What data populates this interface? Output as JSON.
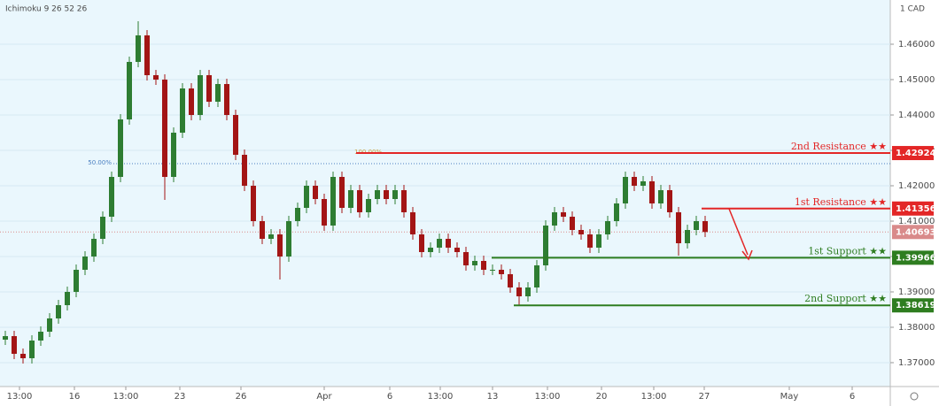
{
  "chart_data": {
    "type": "candlestick",
    "indicator": "Ichimoku 9 26 52 26",
    "currency": "1 CAD",
    "background": "#eaf7fd",
    "up_color": "#2e7d32",
    "down_color": "#a31515",
    "ylim": [
      1.36325,
      1.4725
    ],
    "yticks": [
      {
        "value": 1.37,
        "label": "1.37000"
      },
      {
        "value": 1.38,
        "label": "1.38000"
      },
      {
        "value": 1.39,
        "label": "1.39000"
      },
      {
        "value": 1.4,
        "label": "1.40000"
      },
      {
        "value": 1.41,
        "label": "1.41000"
      },
      {
        "value": 1.42,
        "label": "1.42000"
      },
      {
        "value": 1.43,
        "label": "1.43000"
      },
      {
        "value": 1.44,
        "label": "1.44000"
      },
      {
        "value": 1.45,
        "label": "1.45000"
      },
      {
        "value": 1.46,
        "label": "1.46000"
      }
    ],
    "xlim": [
      -0.6,
      99.9
    ],
    "xticks": [
      {
        "value": 1.6,
        "label": "13:00"
      },
      {
        "value": 7.8,
        "label": "16"
      },
      {
        "value": 13.6,
        "label": "13:00"
      },
      {
        "value": 19.7,
        "label": "23"
      },
      {
        "value": 26.6,
        "label": "26"
      },
      {
        "value": 36,
        "label": "Apr"
      },
      {
        "value": 43.4,
        "label": "6"
      },
      {
        "value": 49.1,
        "label": "13:00"
      },
      {
        "value": 55,
        "label": "13"
      },
      {
        "value": 61.2,
        "label": "13:00"
      },
      {
        "value": 67.3,
        "label": "20"
      },
      {
        "value": 73.2,
        "label": "13:00"
      },
      {
        "value": 78.9,
        "label": "27"
      },
      {
        "value": 88.5,
        "label": "May"
      },
      {
        "value": 95.6,
        "label": "6"
      }
    ],
    "ohlc": [
      [
        1.3765,
        1.379,
        1.375,
        1.3775
      ],
      [
        1.3775,
        1.379,
        1.371,
        1.3725
      ],
      [
        1.3725,
        1.374,
        1.36975,
        1.37125
      ],
      [
        1.37125,
        1.37775,
        1.36975,
        1.37625
      ],
      [
        1.37625,
        1.38025,
        1.37475,
        1.37875
      ],
      [
        1.37875,
        1.384,
        1.37725,
        1.3825
      ],
      [
        1.3825,
        1.38775,
        1.381,
        1.38625
      ],
      [
        1.38625,
        1.3915,
        1.38475,
        1.39
      ],
      [
        1.39,
        1.39775,
        1.3885,
        1.39625
      ],
      [
        1.39625,
        1.4015,
        1.39475,
        1.4
      ],
      [
        1.4,
        1.4065,
        1.3985,
        1.405
      ],
      [
        1.405,
        1.41275,
        1.4035,
        1.41125
      ],
      [
        1.41125,
        1.424,
        1.40975,
        1.4225
      ],
      [
        1.4225,
        1.44025,
        1.421,
        1.43875
      ],
      [
        1.43875,
        1.4565,
        1.43725,
        1.455
      ],
      [
        1.455,
        1.4665,
        1.4535,
        1.4625
      ],
      [
        1.4625,
        1.464,
        1.44975,
        1.45125
      ],
      [
        1.45125,
        1.45275,
        1.4485,
        1.45
      ],
      [
        1.45,
        1.4515,
        1.416,
        1.4225
      ],
      [
        1.4225,
        1.4365,
        1.421,
        1.435
      ],
      [
        1.435,
        1.449,
        1.4335,
        1.4475
      ],
      [
        1.4475,
        1.449,
        1.4385,
        1.44
      ],
      [
        1.44,
        1.45275,
        1.4385,
        1.45125
      ],
      [
        1.45125,
        1.45275,
        1.44225,
        1.44375
      ],
      [
        1.44375,
        1.45025,
        1.44225,
        1.44875
      ],
      [
        1.44875,
        1.45025,
        1.4385,
        1.44
      ],
      [
        1.44,
        1.4415,
        1.42725,
        1.42875
      ],
      [
        1.42875,
        1.43025,
        1.4185,
        1.42
      ],
      [
        1.42,
        1.4215,
        1.4085,
        1.41
      ],
      [
        1.41,
        1.4115,
        1.4035,
        1.405
      ],
      [
        1.405,
        1.40775,
        1.4035,
        1.40625
      ],
      [
        1.40625,
        1.40775,
        1.3935,
        1.4
      ],
      [
        1.4,
        1.4115,
        1.3985,
        1.41
      ],
      [
        1.41,
        1.41525,
        1.4085,
        1.41375
      ],
      [
        1.41375,
        1.4215,
        1.41225,
        1.42
      ],
      [
        1.42,
        1.4215,
        1.41475,
        1.41625
      ],
      [
        1.41625,
        1.41775,
        1.40725,
        1.40875
      ],
      [
        1.40875,
        1.424,
        1.40725,
        1.4225
      ],
      [
        1.4225,
        1.424,
        1.41225,
        1.41375
      ],
      [
        1.41375,
        1.42025,
        1.41225,
        1.41875
      ],
      [
        1.41875,
        1.42025,
        1.411,
        1.4125
      ],
      [
        1.4125,
        1.41775,
        1.411,
        1.41625
      ],
      [
        1.41625,
        1.42025,
        1.41475,
        1.41875
      ],
      [
        1.41875,
        1.42025,
        1.41475,
        1.41625
      ],
      [
        1.41625,
        1.42025,
        1.41475,
        1.41875
      ],
      [
        1.41875,
        1.42025,
        1.411,
        1.4125
      ],
      [
        1.4125,
        1.414,
        1.40475,
        1.40625
      ],
      [
        1.40625,
        1.40775,
        1.39975,
        1.40125
      ],
      [
        1.40125,
        1.404,
        1.39975,
        1.4025
      ],
      [
        1.4025,
        1.4065,
        1.401,
        1.405
      ],
      [
        1.405,
        1.4065,
        1.401,
        1.4025
      ],
      [
        1.4025,
        1.404,
        1.39975,
        1.40125
      ],
      [
        1.40125,
        1.40275,
        1.396,
        1.3975
      ],
      [
        1.3975,
        1.40025,
        1.396,
        1.39875
      ],
      [
        1.39875,
        1.40025,
        1.39475,
        1.39625
      ],
      [
        1.39625,
        1.39775,
        1.39475,
        1.39625
      ],
      [
        1.39625,
        1.39775,
        1.3935,
        1.395
      ],
      [
        1.395,
        1.3965,
        1.38975,
        1.39125
      ],
      [
        1.39125,
        1.39275,
        1.38619,
        1.38875
      ],
      [
        1.38875,
        1.39275,
        1.38725,
        1.39125
      ],
      [
        1.39125,
        1.399,
        1.38975,
        1.3975
      ],
      [
        1.3975,
        1.41025,
        1.396,
        1.40875
      ],
      [
        1.40875,
        1.414,
        1.40725,
        1.4125
      ],
      [
        1.4125,
        1.414,
        1.40975,
        1.41125
      ],
      [
        1.41125,
        1.41275,
        1.406,
        1.4075
      ],
      [
        1.4075,
        1.409,
        1.40475,
        1.40625
      ],
      [
        1.40625,
        1.40775,
        1.401,
        1.4025
      ],
      [
        1.4025,
        1.40775,
        1.401,
        1.40625
      ],
      [
        1.40625,
        1.4115,
        1.40475,
        1.41
      ],
      [
        1.41,
        1.4165,
        1.4085,
        1.415
      ],
      [
        1.415,
        1.424,
        1.4135,
        1.4225
      ],
      [
        1.4225,
        1.424,
        1.4185,
        1.42
      ],
      [
        1.42,
        1.42275,
        1.4185,
        1.42125
      ],
      [
        1.42125,
        1.42275,
        1.4135,
        1.415
      ],
      [
        1.415,
        1.42025,
        1.4135,
        1.41875
      ],
      [
        1.41875,
        1.42025,
        1.411,
        1.4125
      ],
      [
        1.4125,
        1.414,
        1.40025,
        1.40375
      ],
      [
        1.40375,
        1.409,
        1.40225,
        1.4075
      ],
      [
        1.4075,
        1.4115,
        1.406,
        1.41
      ],
      [
        1.41,
        1.4115,
        1.4055,
        1.40693
      ]
    ],
    "fib_lines": [
      {
        "label": "50.00%",
        "value": 1.42625,
        "start": 12.2,
        "color": "#4a7fc1"
      },
      {
        "label": "100.00%",
        "value": 1.42924,
        "start": 39.6,
        "color": "#c8a040"
      }
    ],
    "levels": [
      {
        "label": "2nd Resistance ★★",
        "value": 1.42924,
        "value_label": "1.42924",
        "start": 39.6,
        "color": "#e32626"
      },
      {
        "label": "1st Resistance ★★",
        "value": 1.41356,
        "value_label": "1.41356",
        "start": 78.6,
        "color": "#e32626"
      },
      {
        "label": "1st Support ★★",
        "value": 1.39966,
        "value_label": "1.39966",
        "start": 54.9,
        "color": "#2e7d20"
      },
      {
        "label": "2nd Support ★★",
        "value": 1.38619,
        "value_label": "1.38619",
        "start": 57.4,
        "color": "#2e7d20"
      }
    ],
    "last_price": {
      "value": 1.40693,
      "label": "1.40693",
      "color": "#d98a8a"
    }
  }
}
